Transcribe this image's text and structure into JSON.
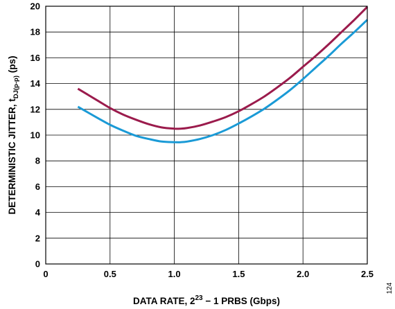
{
  "chart_data": {
    "type": "line",
    "xlabel": {
      "main": "DATA RATE, 2",
      "sup": "23",
      "rest": " − 1 PRBS (Gbps)"
    },
    "ylabel": {
      "main": "DETERMINISTIC JITTER, t",
      "sub": "DJ(p-p)",
      "rest": " (ps)"
    },
    "xlim": [
      0,
      2.5
    ],
    "ylim": [
      0,
      20
    ],
    "xticks": [
      "0",
      "0.5",
      "1.0",
      "1.5",
      "2.0",
      "2.5"
    ],
    "yticks": [
      "0",
      "2",
      "4",
      "6",
      "8",
      "10",
      "12",
      "14",
      "16",
      "18",
      "20"
    ],
    "grid": true,
    "legend": "none",
    "figure_id": "124",
    "series": [
      {
        "color": "#9b1b4c",
        "x": [
          0.25,
          0.4,
          0.5,
          0.6,
          0.7,
          0.8,
          0.9,
          1.0,
          1.05,
          1.1,
          1.2,
          1.3,
          1.4,
          1.5,
          1.6,
          1.7,
          1.8,
          1.9,
          2.0,
          2.1,
          2.2,
          2.3,
          2.4,
          2.5
        ],
        "values": [
          13.6,
          12.7,
          12.1,
          11.6,
          11.2,
          10.85,
          10.6,
          10.5,
          10.5,
          10.55,
          10.75,
          11.05,
          11.4,
          11.85,
          12.4,
          13.0,
          13.7,
          14.45,
          15.3,
          16.15,
          17.05,
          18.0,
          18.95,
          19.95
        ]
      },
      {
        "color": "#1a9ad6",
        "x": [
          0.25,
          0.4,
          0.5,
          0.6,
          0.7,
          0.8,
          0.9,
          1.0,
          1.05,
          1.1,
          1.2,
          1.3,
          1.4,
          1.5,
          1.6,
          1.7,
          1.8,
          1.9,
          2.0,
          2.1,
          2.2,
          2.3,
          2.4,
          2.5
        ],
        "values": [
          12.2,
          11.35,
          10.8,
          10.35,
          9.95,
          9.7,
          9.5,
          9.45,
          9.45,
          9.5,
          9.7,
          10.0,
          10.4,
          10.9,
          11.45,
          12.05,
          12.75,
          13.5,
          14.35,
          15.25,
          16.15,
          17.1,
          18.0,
          18.95
        ]
      }
    ]
  }
}
